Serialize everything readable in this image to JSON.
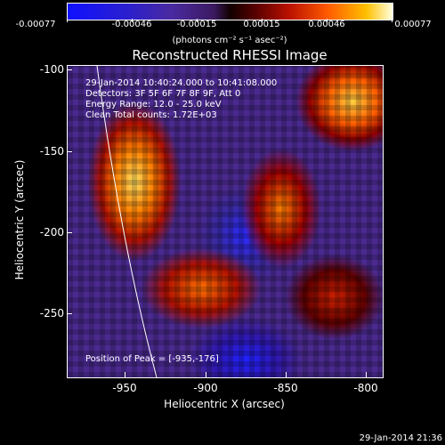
{
  "colorbar": {
    "ticks": [
      "-0.00077",
      "-0.00046",
      "-0.00015",
      "0.00015",
      "0.00046",
      "0.00077"
    ],
    "unit_label": "(photons cm⁻² s⁻¹ asec⁻²)"
  },
  "plot": {
    "title": "Reconstructed RHESSI Image",
    "info_lines": [
      "29-Jan-2014 10:40:24.000 to 10:41:08.000",
      "Detectors: 3F 5F 6F 7F 8F 9F, Att 0",
      "Energy Range: 12.0 - 25.0 keV",
      "Clean    Total counts: 1.72E+03"
    ],
    "peak_label": "Position of Peak = [-935,-176]",
    "x_axis_label": "Heliocentric X (arcsec)",
    "y_axis_label": "Heliocentric Y (arcsec)",
    "x_ticks": [
      "-950",
      "-900",
      "-850",
      "-800"
    ],
    "y_ticks": [
      "-100",
      "-150",
      "-200",
      "-250"
    ]
  },
  "timestamp": "29-Jan-2014 21:36",
  "colors": {
    "background": "#000000",
    "text": "#ffffff"
  }
}
